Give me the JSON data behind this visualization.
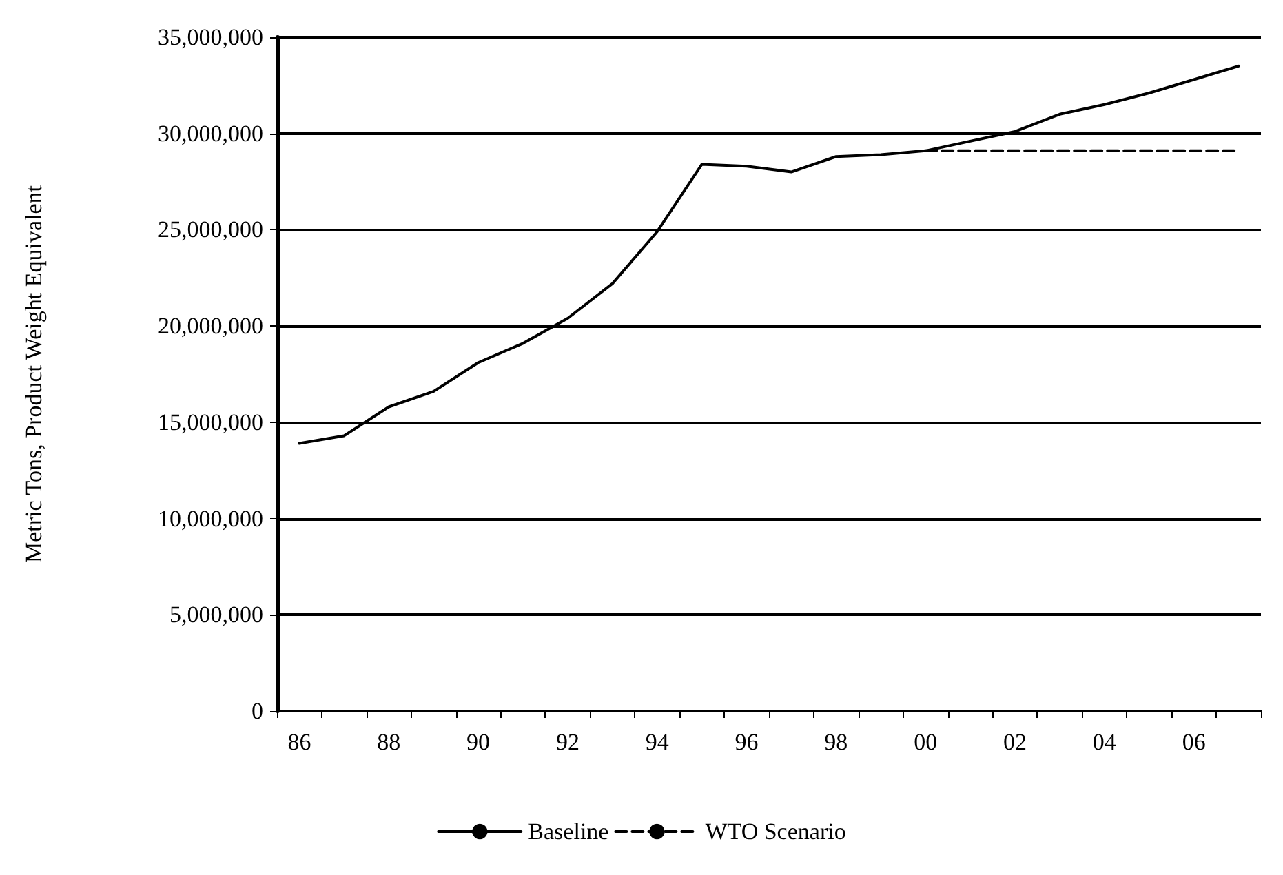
{
  "chart_data": {
    "type": "line",
    "ylabel": "Metric Tons, Product Weight Equivalent",
    "categories": [
      "86",
      null,
      "88",
      null,
      "90",
      null,
      "92",
      null,
      "94",
      null,
      "96",
      null,
      "98",
      null,
      "00",
      null,
      "02",
      null,
      "04",
      null,
      "06",
      null
    ],
    "series": [
      {
        "name": "Baseline",
        "color": "#000000",
        "line_style": "solid",
        "values": [
          13900000,
          14300000,
          15800000,
          16600000,
          18100000,
          19100000,
          20400000,
          22200000,
          24900000,
          28400000,
          28300000,
          28000000,
          28800000,
          28900000,
          29100000,
          29600000,
          30100000,
          31000000,
          31500000,
          32100000,
          32800000,
          33500000
        ]
      },
      {
        "name": "WTO Scenario",
        "color": "#000000",
        "line_style": "dashed",
        "values": [
          null,
          null,
          null,
          null,
          null,
          null,
          null,
          null,
          null,
          null,
          null,
          null,
          null,
          null,
          29100000,
          29100000,
          29100000,
          29100000,
          29100000,
          29100000,
          29100000,
          29100000
        ]
      }
    ],
    "ylim": [
      0,
      35000000
    ],
    "yticks": [
      0,
      {
        "value": 5000000,
        "label": "5,000,000"
      },
      {
        "value": 10000000,
        "label": "10,000,000"
      },
      {
        "value": 15000000,
        "label": "15,000,000"
      },
      {
        "value": 20000000,
        "label": "20,000,000"
      },
      {
        "value": 25000000,
        "label": "25,000,000"
      },
      {
        "value": 30000000,
        "label": "30,000,000"
      },
      {
        "value": 35000000,
        "label": "35,000,000"
      }
    ],
    "grid": "y",
    "legend": "bottom",
    "marker": "none"
  }
}
